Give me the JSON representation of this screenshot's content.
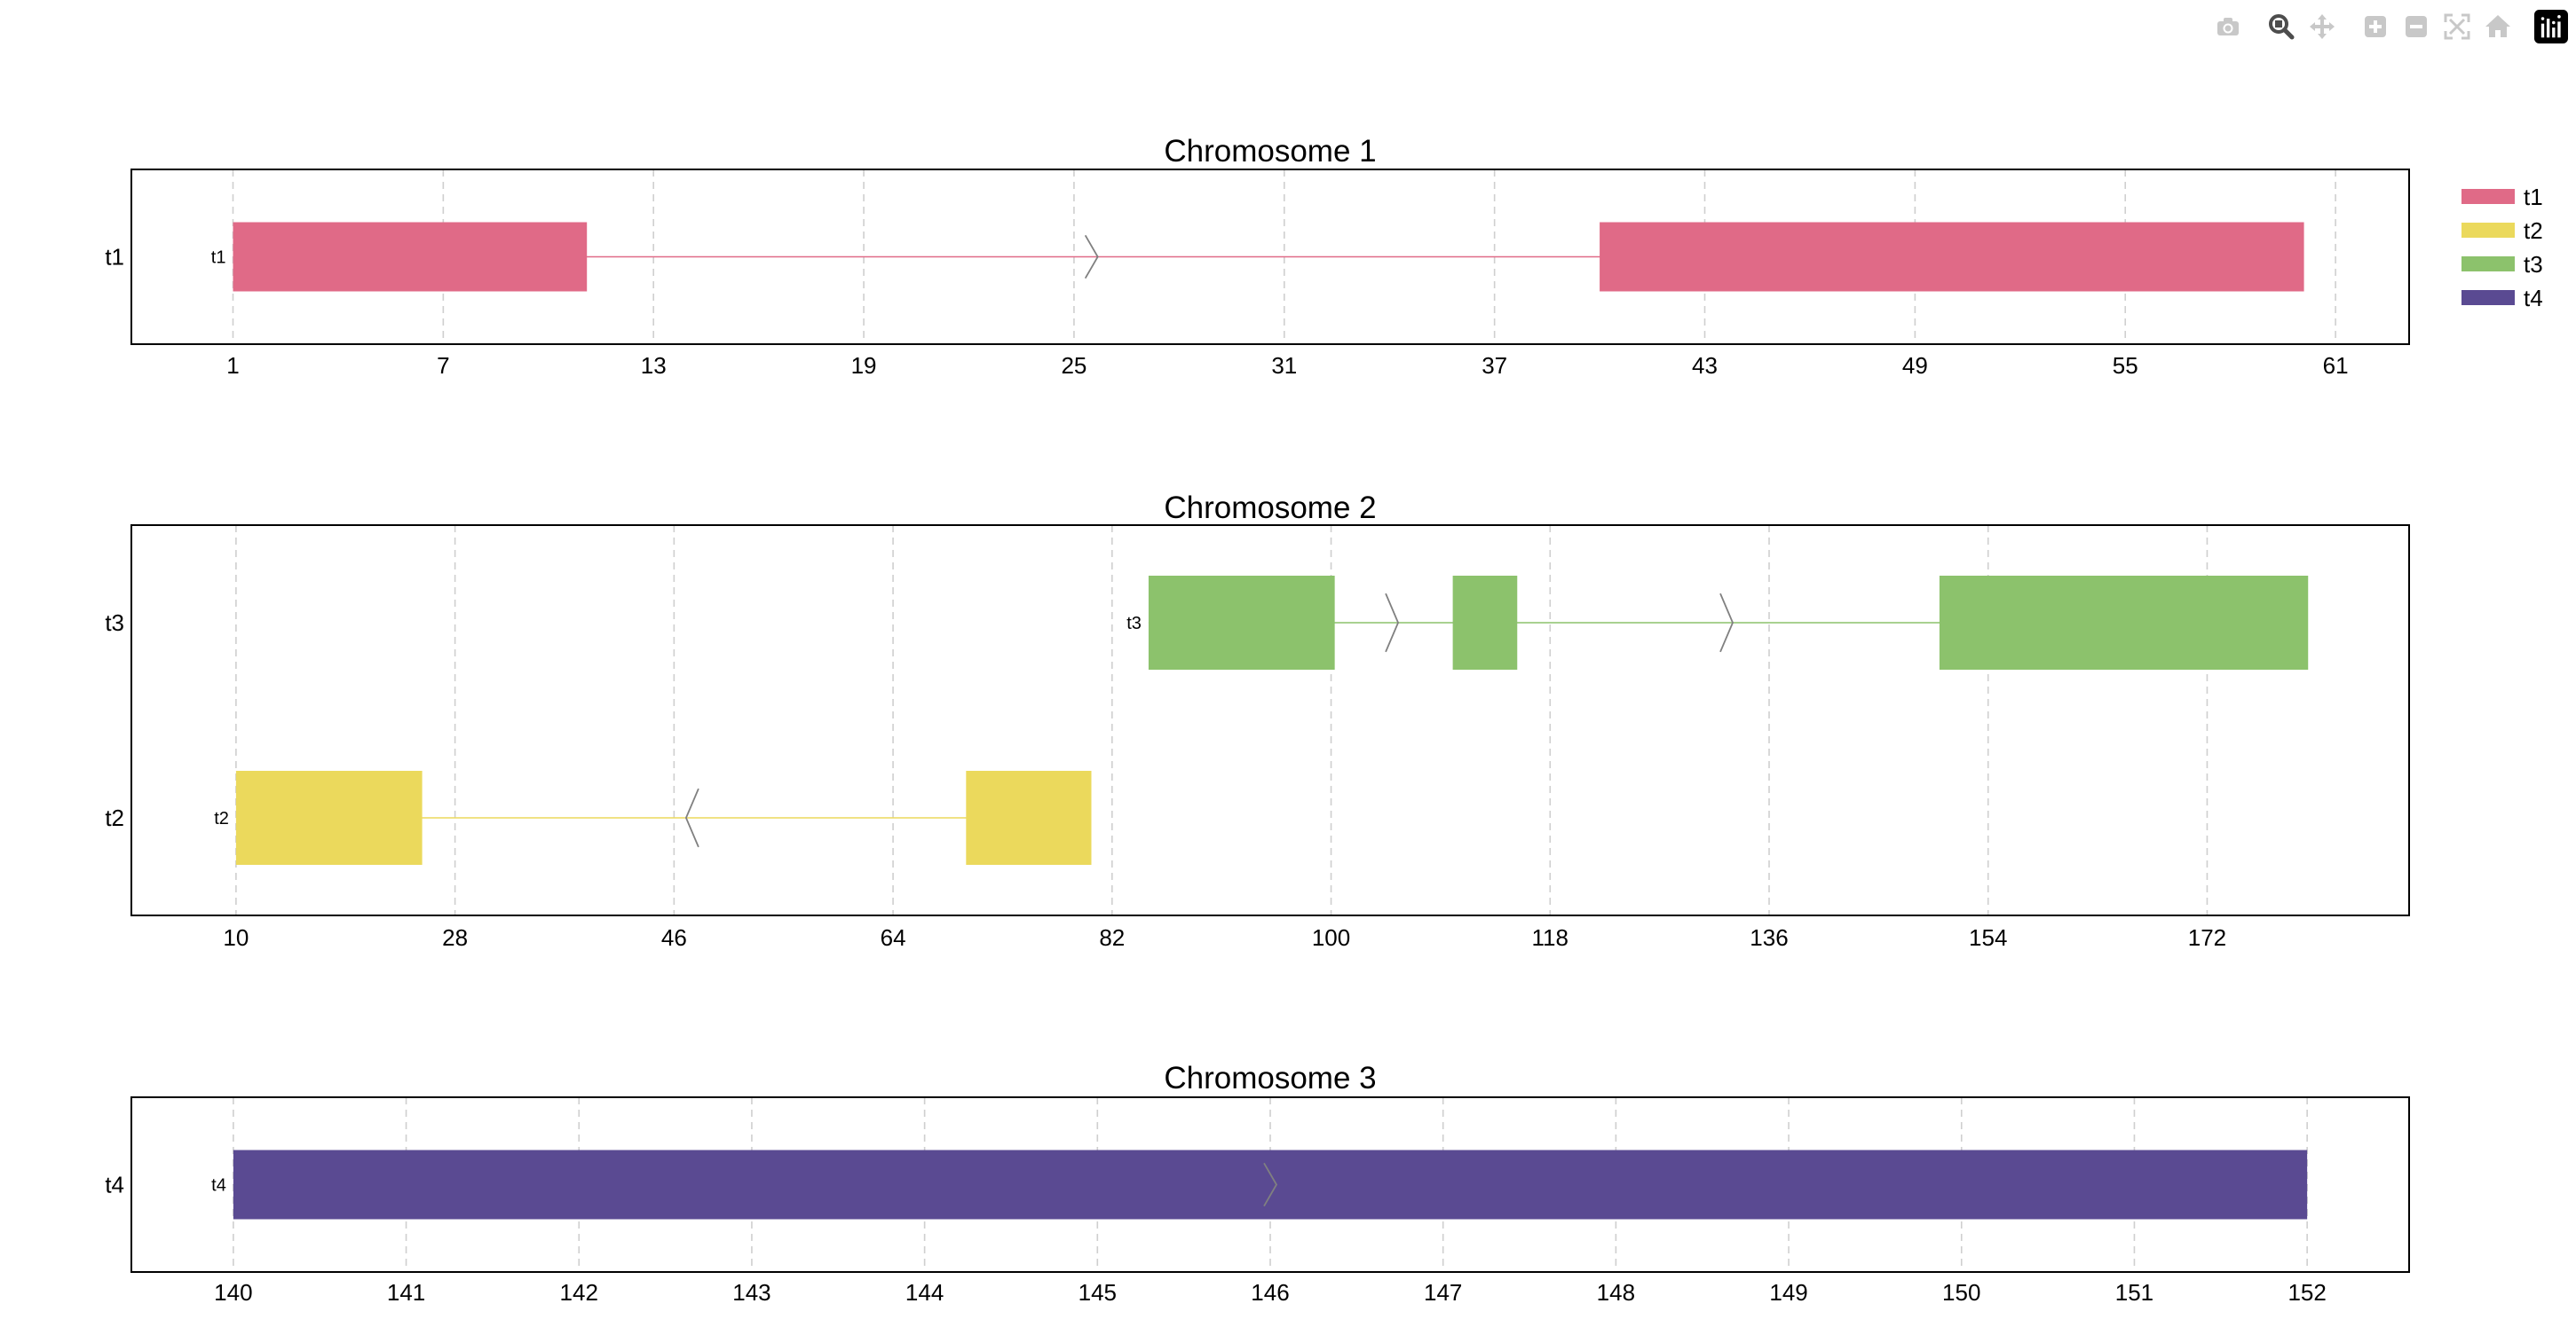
{
  "toolbar": {
    "buttons": [
      {
        "name": "camera-icon",
        "label": "Download plot as a png"
      },
      {
        "name": "zoom-icon",
        "label": "Zoom"
      },
      {
        "name": "pan-icon",
        "label": "Pan"
      },
      {
        "name": "zoom-in-icon",
        "label": "Zoom in"
      },
      {
        "name": "zoom-out-icon",
        "label": "Zoom out"
      },
      {
        "name": "autoscale-icon",
        "label": "Autoscale"
      },
      {
        "name": "reset-axes-icon",
        "label": "Reset axes"
      },
      {
        "name": "plotly-logo-icon",
        "label": "Produced with Plotly"
      }
    ],
    "active": "zoom-icon"
  },
  "legend": {
    "position": "top-right",
    "items": [
      {
        "name": "t1",
        "color": "#e06a87"
      },
      {
        "name": "t2",
        "color": "#ebd95c"
      },
      {
        "name": "t3",
        "color": "#8cc26c"
      },
      {
        "name": "t4",
        "color": "#5a4a92"
      }
    ]
  },
  "chart_data": [
    {
      "type": "gene-track",
      "title": "Chromosome 1",
      "xlim": [
        -1.9,
        63.1
      ],
      "xticks": [
        1,
        7,
        13,
        19,
        25,
        31,
        37,
        43,
        49,
        55,
        61
      ],
      "grid": true,
      "rows": [
        "t1"
      ],
      "transcripts": [
        {
          "name": "t1",
          "row": "t1",
          "color": "#e06a87",
          "strand": "+",
          "start": 1,
          "end": 60,
          "exons": [
            [
              1,
              11.1
            ],
            [
              40,
              60.1
            ]
          ],
          "arrows": [
            25.5
          ]
        }
      ]
    },
    {
      "type": "gene-track",
      "title": "Chromosome 2",
      "xlim": [
        1.4,
        188.6
      ],
      "xticks": [
        10,
        28,
        46,
        64,
        82,
        100,
        118,
        136,
        154,
        172
      ],
      "grid": true,
      "rows": [
        "t3",
        "t2"
      ],
      "transcripts": [
        {
          "name": "t3",
          "row": "t3",
          "color": "#8cc26c",
          "strand": "+",
          "start": 85,
          "end": 180,
          "exons": [
            [
              85,
              100.3
            ],
            [
              110,
              115.3
            ],
            [
              150,
              180.3
            ]
          ],
          "arrows": [
            105,
            132.5
          ]
        },
        {
          "name": "t2",
          "row": "t2",
          "color": "#ebd95c",
          "strand": "-",
          "start": 10,
          "end": 80,
          "exons": [
            [
              10,
              25.3
            ],
            [
              70,
              80.3
            ]
          ],
          "arrows": [
            47.5
          ]
        }
      ]
    },
    {
      "type": "gene-track",
      "title": "Chromosome 3",
      "xlim": [
        139.41,
        152.59
      ],
      "xticks": [
        140,
        141,
        142,
        143,
        144,
        145,
        146,
        147,
        148,
        149,
        150,
        151,
        152
      ],
      "grid": true,
      "rows": [
        "t4"
      ],
      "transcripts": [
        {
          "name": "t4",
          "row": "t4",
          "color": "#5a4a92",
          "strand": "+",
          "start": 140,
          "end": 152,
          "exons": [
            [
              140,
              152
            ]
          ],
          "arrows": [
            146
          ]
        }
      ]
    }
  ]
}
